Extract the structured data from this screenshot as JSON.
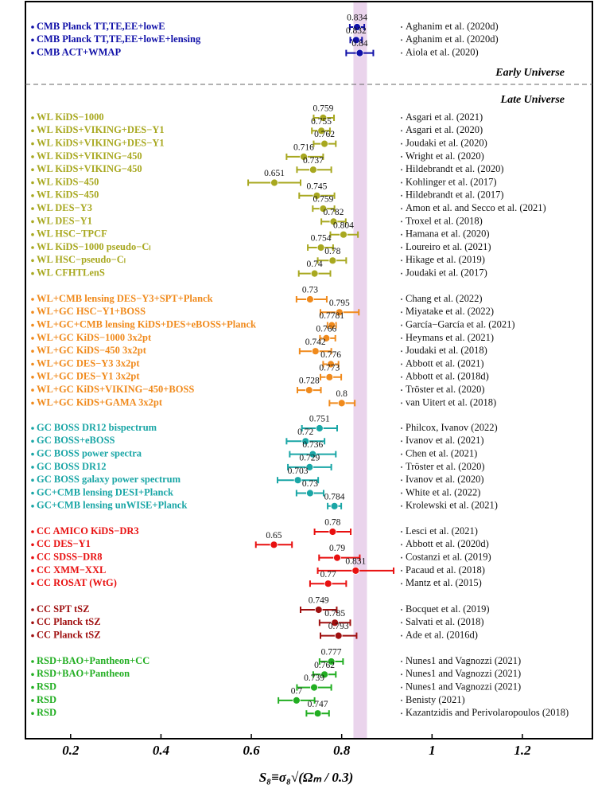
{
  "chart_data": {
    "type": "forest",
    "xlabel": "S₈≡σ₈√(Ωₘ / 0.3)",
    "xlim": [
      0.1,
      1.355
    ],
    "xticks": [
      0.2,
      0.4,
      0.6,
      0.8,
      1.0,
      1.2
    ],
    "band": [
      0.826,
      0.856
    ],
    "band_color": "#ead4ec",
    "sections": [
      "Early Universe",
      "Late Universe"
    ],
    "groups": [
      {
        "color": "#1010a8",
        "entries": [
          {
            "label": "CMB Planck TT,TE,EE+lowE",
            "value": 0.834,
            "errors": [
              0.016,
              0.016
            ],
            "reference": "Aghanim et al. (2020d)"
          },
          {
            "label": "CMB Planck TT,TE,EE+lowE+lensing",
            "value": 0.832,
            "errors": [
              0.013,
              0.013
            ],
            "reference": "Aghanim et al. (2020d)"
          },
          {
            "label": "CMB ACT+WMAP",
            "value": 0.84,
            "errors": [
              0.03,
              0.03
            ],
            "reference": "Aiola et al. (2020)"
          }
        ]
      },
      {
        "color": "#a8a820",
        "entries": [
          {
            "label": "WL KiDS−1000",
            "value": 0.759,
            "errors": [
              0.021,
              0.024
            ],
            "reference": "Asgari et al. (2021)"
          },
          {
            "label": "WL KiDS+VIKING+DES−Y1",
            "value": 0.755,
            "errors": [
              0.021,
              0.019
            ],
            "reference": "Asgari et al. (2020)"
          },
          {
            "label": "WL KiDS+VIKING+DES−Y1",
            "value": 0.762,
            "errors": [
              0.024,
              0.025
            ],
            "reference": "Joudaki et al. (2020)"
          },
          {
            "label": "WL KiDS+VIKING−450",
            "value": 0.716,
            "errors": [
              0.038,
              0.043
            ],
            "reference": "Wright et al. (2020)"
          },
          {
            "label": "WL KiDS+VIKING−450",
            "value": 0.737,
            "errors": [
              0.036,
              0.04
            ],
            "reference": "Hildebrandt et al. (2020)"
          },
          {
            "label": "WL KiDS−450",
            "value": 0.651,
            "errors": [
              0.058,
              0.058
            ],
            "reference": "Kohlinger et al. (2017)"
          },
          {
            "label": "WL KiDS−450",
            "value": 0.745,
            "errors": [
              0.039,
              0.039
            ],
            "reference": "Hildebrandt et al. (2017)"
          },
          {
            "label": "WL DES−Y3",
            "value": 0.759,
            "errors": [
              0.023,
              0.025
            ],
            "reference": "Amon et al. and Secco et al. (2021)"
          },
          {
            "label": "WL DES−Y1",
            "value": 0.782,
            "errors": [
              0.027,
              0.027
            ],
            "reference": "Troxel et al. (2018)"
          },
          {
            "label": "WL HSC−TPCF",
            "value": 0.804,
            "errors": [
              0.029,
              0.032
            ],
            "reference": "Hamana et al. (2020)"
          },
          {
            "label": "WL KiDS−1000 pseudo−Cₗ",
            "value": 0.754,
            "errors": [
              0.029,
              0.027
            ],
            "reference": "Loureiro et al. (2021)"
          },
          {
            "label": "WL HSC−pseudo−Cₗ",
            "value": 0.78,
            "errors": [
              0.033,
              0.03
            ],
            "reference": "Hikage et al. (2019)"
          },
          {
            "label": "WL CFHTLenS",
            "value": 0.74,
            "errors": [
              0.035,
              0.035
            ],
            "reference": "Joudaki et al. (2017)"
          }
        ]
      },
      {
        "color": "#f08a1c",
        "entries": [
          {
            "label": "WL+CMB lensing DES−Y3+SPT+Planck",
            "value": 0.73,
            "errors": [
              0.03,
              0.037
            ],
            "reference": "Chang et al. (2022)"
          },
          {
            "label": "WL+GC HSC−Y1+BOSS",
            "value": 0.795,
            "errors": [
              0.042,
              0.043
            ],
            "reference": "Miyatake et al. (2022)"
          },
          {
            "label": "WL+GC+CMB lensing KiDS+DES+eBOSS+Planck",
            "value": 0.7781,
            "errors": [
              0.0094,
              0.0094
            ],
            "reference": "García−García et al. (2021)"
          },
          {
            "label": "WL+GC KiDS−1000 3x2pt",
            "value": 0.766,
            "errors": [
              0.014,
              0.02
            ],
            "reference": "Heymans et al. (2021)"
          },
          {
            "label": "WL+GC KiDS−450 3x2pt",
            "value": 0.742,
            "errors": [
              0.035,
              0.035
            ],
            "reference": "Joudaki et al. (2018)"
          },
          {
            "label": "WL+GC DES−Y3 3x2pt",
            "value": 0.776,
            "errors": [
              0.017,
              0.017
            ],
            "reference": "Abbott et al. (2021)"
          },
          {
            "label": "WL+GC DES−Y1 3x2pt",
            "value": 0.773,
            "errors": [
              0.02,
              0.026
            ],
            "reference": "Abbott et al. (2018d)"
          },
          {
            "label": "WL+GC KiDS+VIKING−450+BOSS",
            "value": 0.728,
            "errors": [
              0.026,
              0.026
            ],
            "reference": "Tröster et al. (2020)"
          },
          {
            "label": "WL+GC KiDS+GAMA 3x2pt",
            "value": 0.8,
            "errors": [
              0.027,
              0.029
            ],
            "reference": "van Uitert et al. (2018)"
          }
        ]
      },
      {
        "color": "#1aa6a6",
        "entries": [
          {
            "label": "GC BOSS DR12 bispectrum",
            "value": 0.751,
            "errors": [
              0.039,
              0.039
            ],
            "reference": "Philcox, Ivanov (2022)"
          },
          {
            "label": "GC BOSS+eBOSS",
            "value": 0.72,
            "errors": [
              0.042,
              0.042
            ],
            "reference": "Ivanov et al. (2021)"
          },
          {
            "label": "GC BOSS power spectra",
            "value": 0.736,
            "errors": [
              0.051,
              0.051
            ],
            "reference": "Chen et al. (2021)"
          },
          {
            "label": "GC BOSS DR12",
            "value": 0.729,
            "errors": [
              0.048,
              0.048
            ],
            "reference": "Tröster et al. (2020)"
          },
          {
            "label": "GC BOSS galaxy power spectrum",
            "value": 0.703,
            "errors": [
              0.045,
              0.045
            ],
            "reference": "Ivanov et al. (2020)"
          },
          {
            "label": "GC+CMB lensing DESI+Planck",
            "value": 0.73,
            "errors": [
              0.03,
              0.03
            ],
            "reference": "White et al. (2022)"
          },
          {
            "label": "GC+CMB lensing unWISE+Planck",
            "value": 0.784,
            "errors": [
              0.015,
              0.015
            ],
            "reference": "Krolewski et al. (2021)"
          }
        ]
      },
      {
        "color": "#e81010",
        "entries": [
          {
            "label": "CC AMICO KiDS−DR3",
            "value": 0.78,
            "errors": [
              0.04,
              0.04
            ],
            "reference": "Lesci et al. (2021)"
          },
          {
            "label": "CC DES−Y1",
            "value": 0.65,
            "errors": [
              0.04,
              0.04
            ],
            "reference": "Abbott et al. (2020d)"
          },
          {
            "label": "CC SDSS−DR8",
            "value": 0.79,
            "errors": [
              0.04,
              0.05
            ],
            "reference": "Costanzi et al. (2019)"
          },
          {
            "label": "CC XMM−XXL",
            "value": 0.831,
            "errors": [
              0.084,
              0.084
            ],
            "reference": "Pacaud et al. (2018)"
          },
          {
            "label": "CC ROSAT (WtG)",
            "value": 0.77,
            "errors": [
              0.04,
              0.04
            ],
            "reference": "Mantz et al. (2015)"
          }
        ]
      },
      {
        "color": "#a01010",
        "entries": [
          {
            "label": "CC SPT tSZ",
            "value": 0.749,
            "errors": [
              0.04,
              0.04
            ],
            "reference": "Bocquet et al. (2019)"
          },
          {
            "label": "CC Planck tSZ",
            "value": 0.785,
            "errors": [
              0.034,
              0.034
            ],
            "reference": "Salvati et al. (2018)"
          },
          {
            "label": "CC Planck tSZ",
            "value": 0.793,
            "errors": [
              0.04,
              0.04
            ],
            "reference": "Ade et al. (2016d)"
          }
        ]
      },
      {
        "color": "#22ae22",
        "entries": [
          {
            "label": "RSD+BAO+Pantheon+CC",
            "value": 0.777,
            "errors": [
              0.026,
              0.026
            ],
            "reference": "Nunes1 and Vagnozzi (2021)"
          },
          {
            "label": "RSD+BAO+Pantheon",
            "value": 0.762,
            "errors": [
              0.025,
              0.025
            ],
            "reference": "Nunes1 and Vagnozzi (2021)"
          },
          {
            "label": "RSD",
            "value": 0.739,
            "errors": [
              0.038,
              0.038
            ],
            "reference": "Nunes1 and Vagnozzi (2021)"
          },
          {
            "label": "RSD",
            "value": 0.7,
            "errors": [
              0.04,
              0.04
            ],
            "reference": "Benisty (2021)"
          },
          {
            "label": "RSD",
            "value": 0.747,
            "errors": [
              0.025,
              0.025
            ],
            "reference": "Kazantzidis and Perivolaropoulos (2018)"
          }
        ]
      }
    ]
  }
}
